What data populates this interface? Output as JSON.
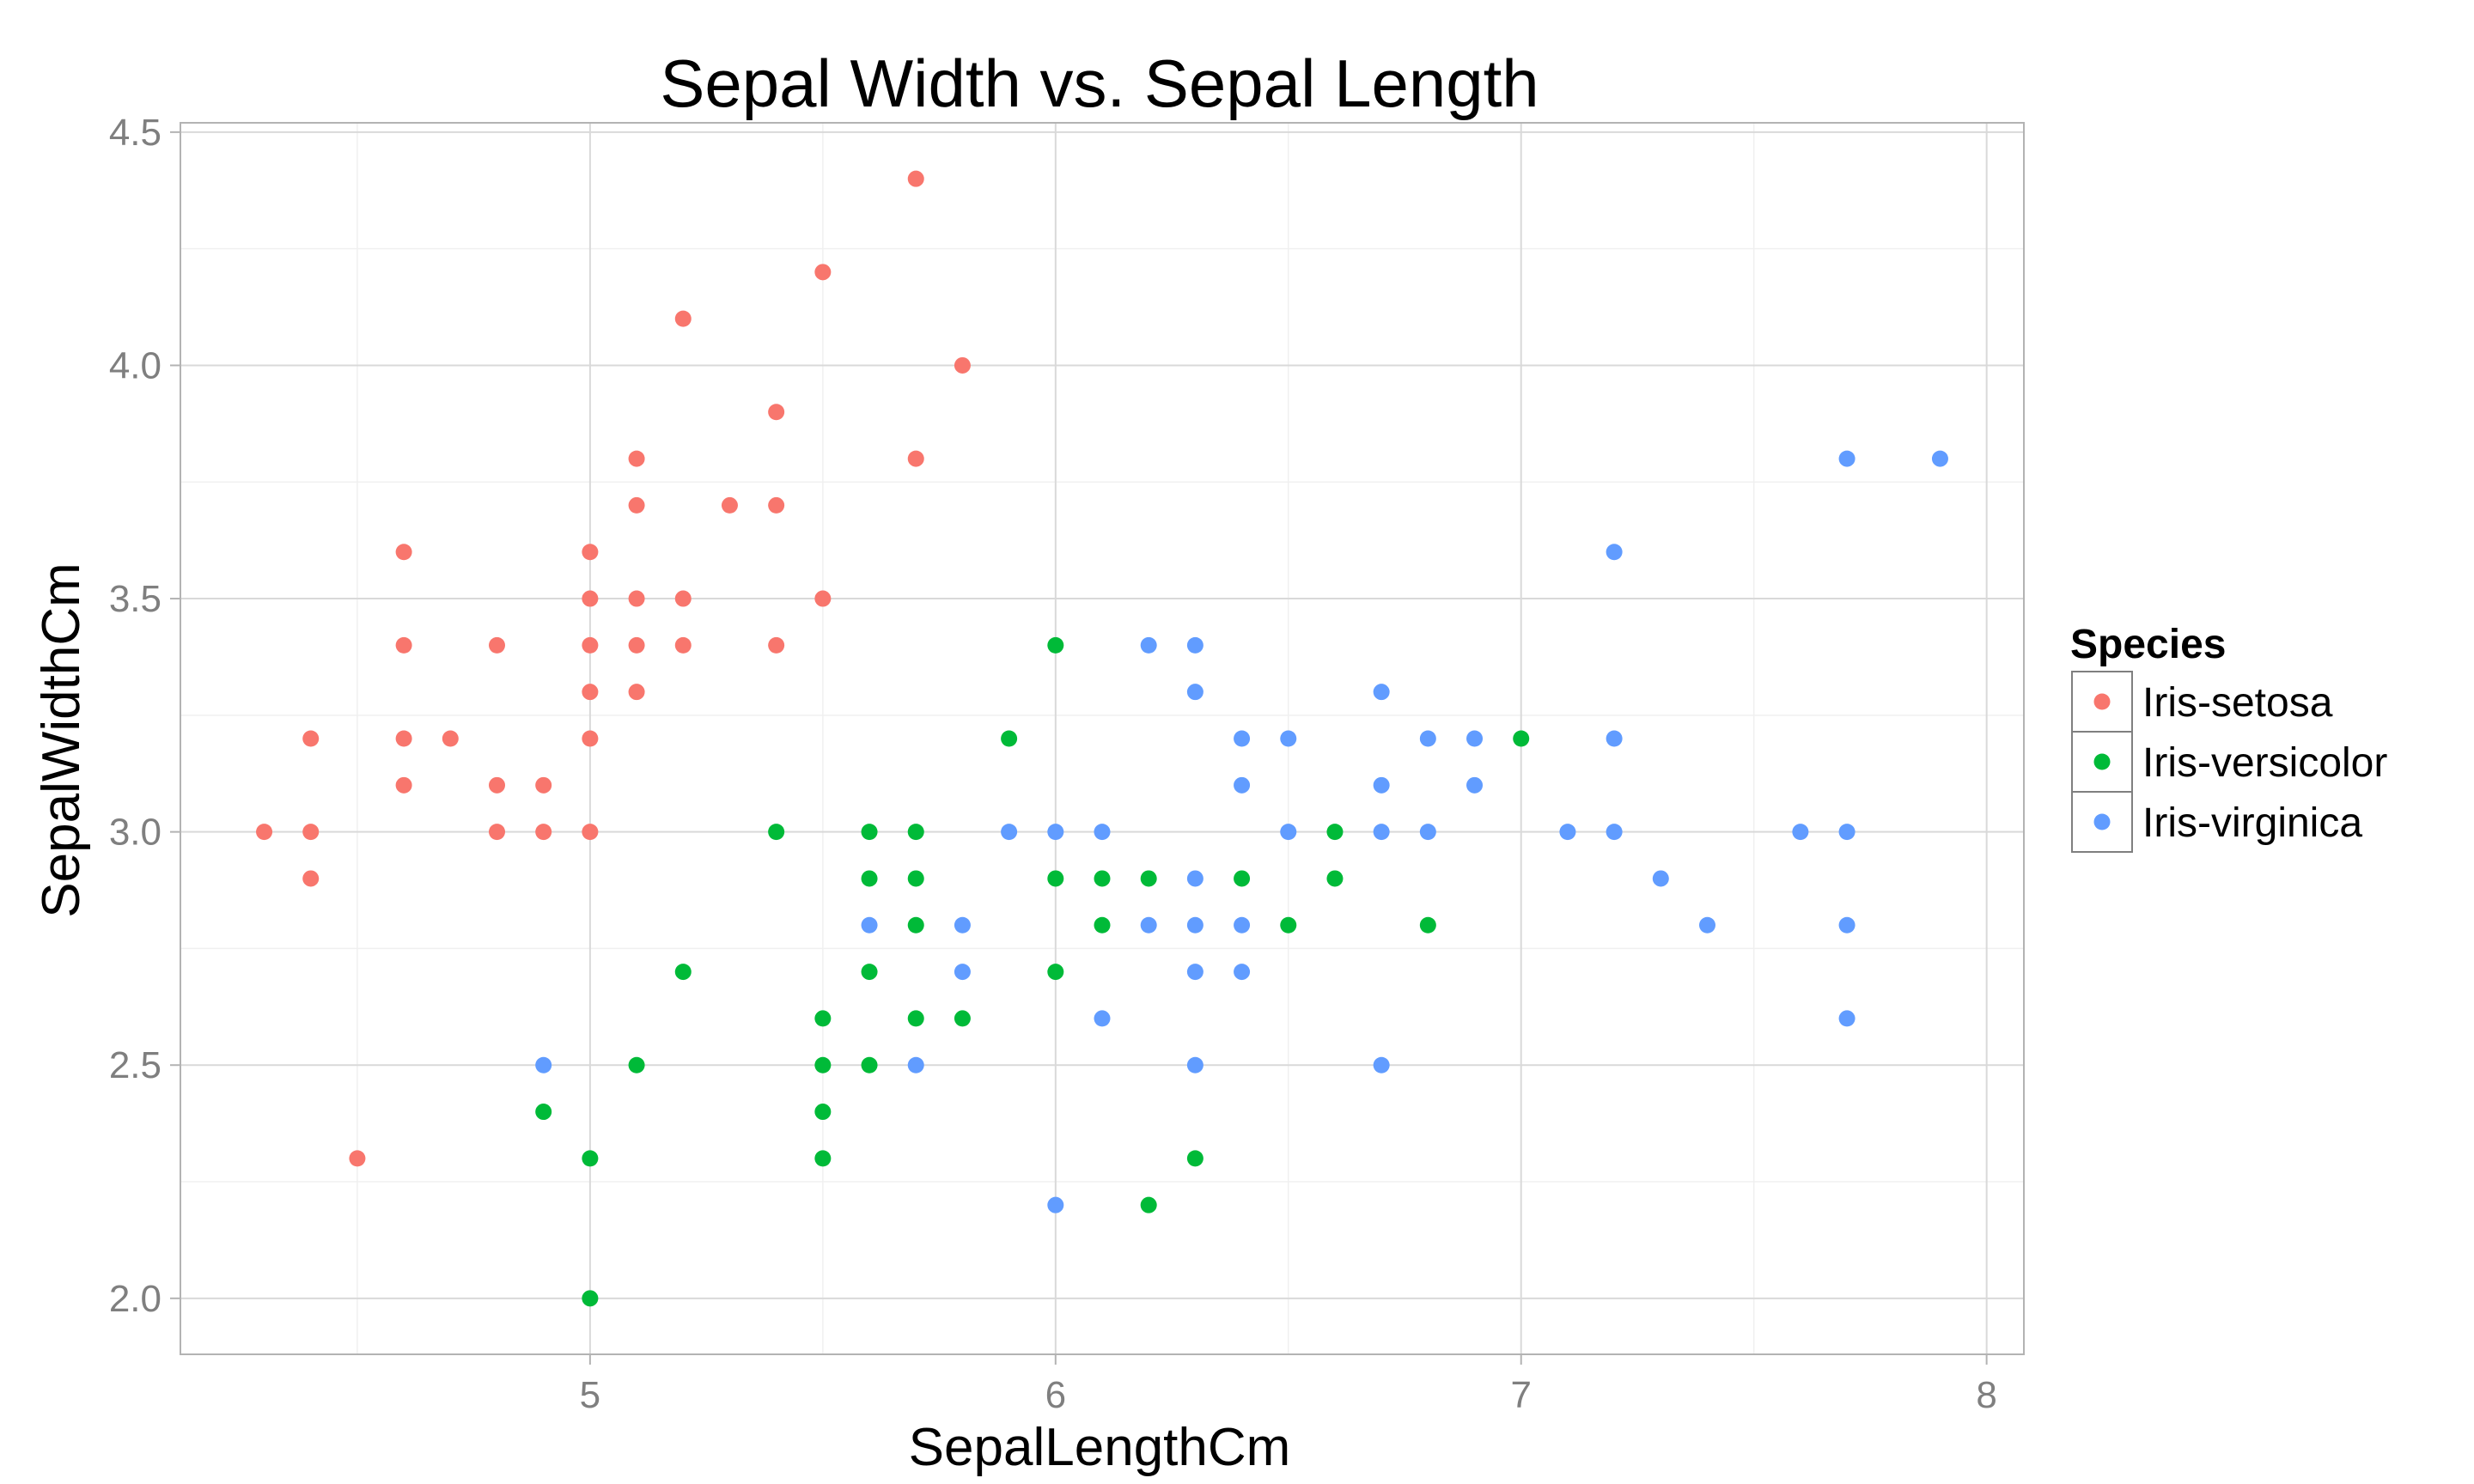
{
  "chart_data": {
    "type": "scatter",
    "title": "Sepal Width vs. Sepal Length",
    "xlabel": "SepalLengthCm",
    "ylabel": "SepalWidthCm",
    "xlim": [
      4.12,
      8.08
    ],
    "ylim": [
      1.88,
      4.52
    ],
    "x_ticks": [
      5,
      6,
      7,
      8
    ],
    "x_tick_labels": [
      "5",
      "6",
      "7",
      "8"
    ],
    "y_ticks": [
      2.0,
      2.5,
      3.0,
      3.5,
      4.0,
      4.5
    ],
    "y_tick_labels": [
      "2.0",
      "2.5",
      "3.0",
      "3.5",
      "4.0",
      "4.5"
    ],
    "grid": true,
    "legend": {
      "title": "Species",
      "position": "right"
    },
    "series": [
      {
        "name": "Iris-setosa",
        "color": "#F8766D",
        "points": [
          [
            4.3,
            3.0
          ],
          [
            4.4,
            3.2
          ],
          [
            4.4,
            3.0
          ],
          [
            4.4,
            2.9
          ],
          [
            4.5,
            2.3
          ],
          [
            4.6,
            3.6
          ],
          [
            4.6,
            3.4
          ],
          [
            4.6,
            3.2
          ],
          [
            4.6,
            3.1
          ],
          [
            4.7,
            3.2
          ],
          [
            4.8,
            3.4
          ],
          [
            4.8,
            3.1
          ],
          [
            4.8,
            3.0
          ],
          [
            4.9,
            3.1
          ],
          [
            4.9,
            3.0
          ],
          [
            5.0,
            3.6
          ],
          [
            5.0,
            3.5
          ],
          [
            5.0,
            3.4
          ],
          [
            5.0,
            3.3
          ],
          [
            5.0,
            3.2
          ],
          [
            5.0,
            3.0
          ],
          [
            5.1,
            3.8
          ],
          [
            5.1,
            3.7
          ],
          [
            5.1,
            3.5
          ],
          [
            5.1,
            3.4
          ],
          [
            5.1,
            3.3
          ],
          [
            5.2,
            4.1
          ],
          [
            5.2,
            3.5
          ],
          [
            5.2,
            3.4
          ],
          [
            5.3,
            3.7
          ],
          [
            5.4,
            3.9
          ],
          [
            5.4,
            3.7
          ],
          [
            5.4,
            3.4
          ],
          [
            5.5,
            4.2
          ],
          [
            5.5,
            3.5
          ],
          [
            5.7,
            4.4
          ],
          [
            5.7,
            3.8
          ],
          [
            5.8,
            4.0
          ]
        ]
      },
      {
        "name": "Iris-versicolor",
        "color": "#00BA38",
        "points": [
          [
            4.9,
            2.4
          ],
          [
            5.0,
            2.3
          ],
          [
            5.0,
            2.0
          ],
          [
            5.1,
            2.5
          ],
          [
            5.2,
            2.7
          ],
          [
            5.4,
            3.0
          ],
          [
            5.5,
            2.6
          ],
          [
            5.5,
            2.5
          ],
          [
            5.5,
            2.4
          ],
          [
            5.5,
            2.3
          ],
          [
            5.6,
            3.0
          ],
          [
            5.6,
            2.9
          ],
          [
            5.6,
            2.7
          ],
          [
            5.6,
            2.5
          ],
          [
            5.7,
            3.0
          ],
          [
            5.7,
            2.9
          ],
          [
            5.7,
            2.8
          ],
          [
            5.7,
            2.6
          ],
          [
            5.8,
            2.6
          ],
          [
            5.9,
            3.2
          ],
          [
            6.0,
            3.4
          ],
          [
            6.0,
            2.9
          ],
          [
            6.0,
            2.7
          ],
          [
            6.1,
            2.9
          ],
          [
            6.1,
            2.8
          ],
          [
            6.2,
            2.9
          ],
          [
            6.2,
            2.2
          ],
          [
            6.3,
            2.3
          ],
          [
            6.4,
            2.9
          ],
          [
            6.5,
            2.8
          ],
          [
            6.6,
            3.0
          ],
          [
            6.6,
            2.9
          ],
          [
            6.8,
            2.8
          ],
          [
            7.0,
            3.2
          ]
        ]
      },
      {
        "name": "Iris-virginica",
        "color": "#619CFF",
        "points": [
          [
            4.9,
            2.5
          ],
          [
            5.6,
            2.8
          ],
          [
            5.7,
            2.5
          ],
          [
            5.8,
            2.8
          ],
          [
            5.8,
            2.7
          ],
          [
            5.9,
            3.0
          ],
          [
            6.0,
            3.0
          ],
          [
            6.0,
            2.2
          ],
          [
            6.1,
            3.0
          ],
          [
            6.1,
            2.6
          ],
          [
            6.2,
            3.4
          ],
          [
            6.2,
            2.8
          ],
          [
            6.3,
            3.4
          ],
          [
            6.3,
            3.3
          ],
          [
            6.3,
            2.9
          ],
          [
            6.3,
            2.8
          ],
          [
            6.3,
            2.7
          ],
          [
            6.3,
            2.5
          ],
          [
            6.4,
            3.2
          ],
          [
            6.4,
            3.1
          ],
          [
            6.4,
            2.8
          ],
          [
            6.4,
            2.7
          ],
          [
            6.5,
            3.2
          ],
          [
            6.5,
            3.0
          ],
          [
            6.7,
            3.3
          ],
          [
            6.7,
            3.1
          ],
          [
            6.7,
            3.0
          ],
          [
            6.7,
            2.5
          ],
          [
            6.8,
            3.2
          ],
          [
            6.8,
            3.0
          ],
          [
            6.9,
            3.2
          ],
          [
            6.9,
            3.1
          ],
          [
            7.1,
            3.0
          ],
          [
            7.2,
            3.6
          ],
          [
            7.2,
            3.2
          ],
          [
            7.2,
            3.0
          ],
          [
            7.3,
            2.9
          ],
          [
            7.4,
            2.8
          ],
          [
            7.6,
            3.0
          ],
          [
            7.7,
            3.8
          ],
          [
            7.7,
            3.0
          ],
          [
            7.7,
            2.8
          ],
          [
            7.7,
            2.6
          ],
          [
            7.9,
            3.8
          ]
        ]
      }
    ]
  }
}
